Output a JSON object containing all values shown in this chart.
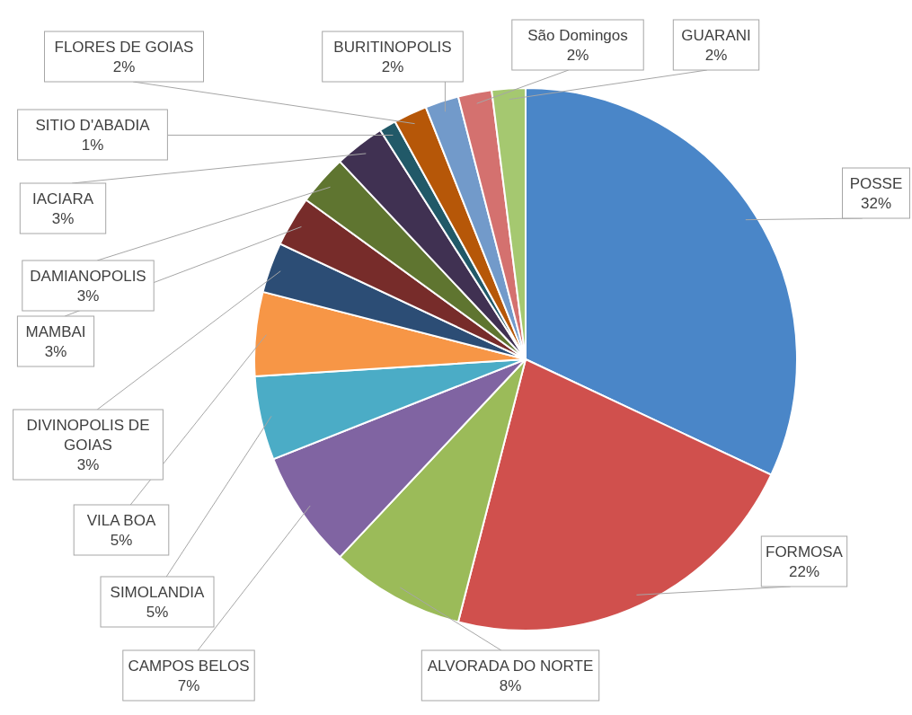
{
  "chart_data": {
    "type": "pie",
    "categories": [
      "POSSE",
      "FORMOSA",
      "ALVORADA DO NORTE",
      "CAMPOS BELOS",
      "SIMOLANDIA",
      "VILA BOA",
      "DIVINOPOLIS DE GOIAS",
      "MAMBAI",
      "DAMIANOPOLIS",
      "IACIARA",
      "SITIO D'ABADIA",
      "FLORES DE GOIAS",
      "BURITINOPOLIS",
      "São Domingos",
      "GUARANI"
    ],
    "values": [
      32,
      22,
      8,
      7,
      5,
      5,
      3,
      3,
      3,
      3,
      1,
      2,
      2,
      2,
      2
    ],
    "value_labels": [
      "32%",
      "22%",
      "8%",
      "7%",
      "5%",
      "5%",
      "3%",
      "3%",
      "3%",
      "3%",
      "1%",
      "2%",
      "2%",
      "2%",
      "2%"
    ],
    "colors": [
      "#4a86c8",
      "#d0504d",
      "#9bbb59",
      "#8064a2",
      "#4bacc6",
      "#f79646",
      "#2c4d75",
      "#772c2a",
      "#5f7530",
      "#403152",
      "#215968",
      "#b65708",
      "#729aca",
      "#d4716f",
      "#a5c870"
    ]
  }
}
